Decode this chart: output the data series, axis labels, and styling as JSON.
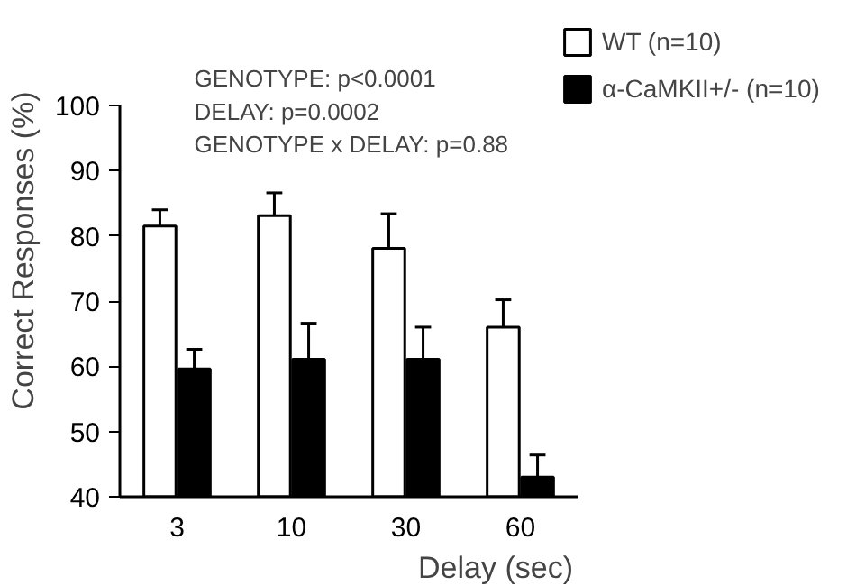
{
  "chart_data": {
    "type": "bar",
    "xlabel": "Delay (sec)",
    "ylabel": "Correct Responses (%)",
    "categories": [
      "3",
      "10",
      "30",
      "60"
    ],
    "series": [
      {
        "name": "WT (n=10)",
        "color": "#ffffff",
        "values": [
          81.5,
          83.1,
          78.1,
          66.0
        ],
        "errors": [
          [
            81.5,
            84.0
          ],
          [
            83.1,
            86.6
          ],
          [
            78.1,
            83.4
          ],
          [
            66.0,
            70.2
          ]
        ]
      },
      {
        "name": "α-CaMKII+/- (n=10)",
        "color": "#000000",
        "values": [
          59.6,
          61.1,
          61.1,
          43.0
        ],
        "errors": [
          [
            59.6,
            62.6
          ],
          [
            61.1,
            66.6
          ],
          [
            61.1,
            66.0
          ],
          [
            43.0,
            46.4
          ]
        ]
      }
    ],
    "annotations": [
      "GENOTYPE: p<0.0001",
      "DELAY: p=0.0002",
      "GENOTYPE x DELAY: p=0.88"
    ],
    "ylim": [
      40,
      100
    ],
    "yticks": [
      40,
      50,
      60,
      70,
      80,
      90,
      100
    ],
    "grid": false,
    "legend": "top right"
  }
}
